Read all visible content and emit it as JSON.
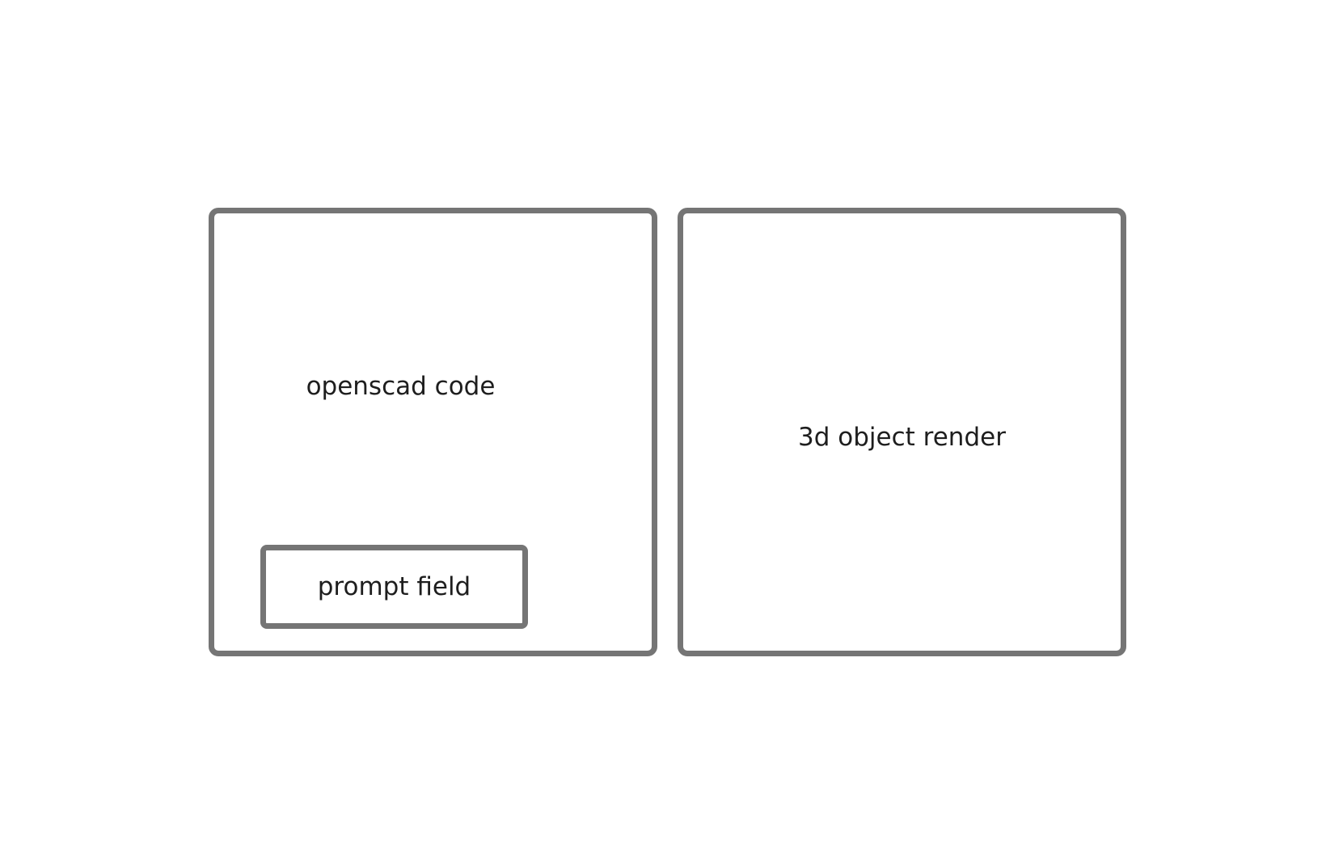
{
  "left_panel": {
    "label": "openscad code",
    "prompt": {
      "label": "prompt field"
    }
  },
  "right_panel": {
    "label": "3d object render"
  },
  "colors": {
    "border": "#757575",
    "text": "#1e1e1e",
    "background": "#ffffff"
  }
}
